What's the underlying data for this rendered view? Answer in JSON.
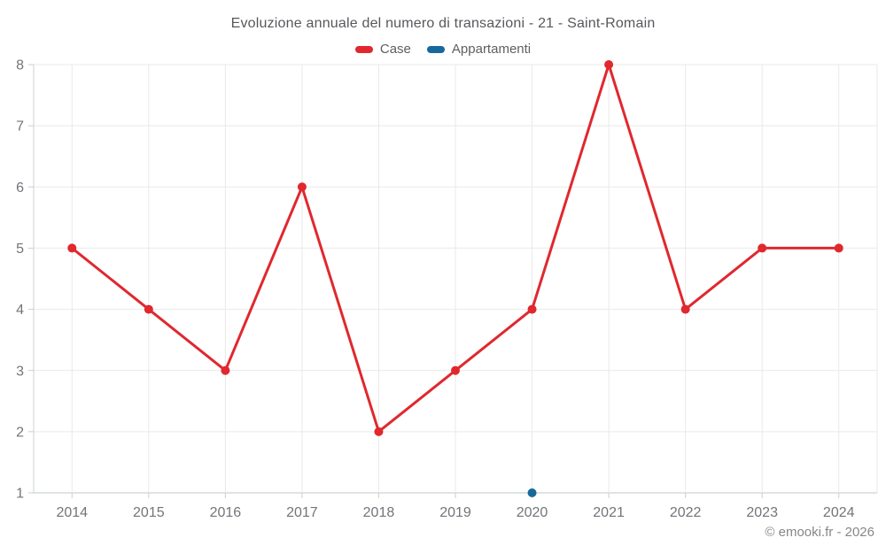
{
  "title": "Evoluzione annuale del numero di transazioni - 21 - Saint-Romain",
  "legend": [
    {
      "label": "Case",
      "color": "#e0282e"
    },
    {
      "label": "Appartamenti",
      "color": "#17699c"
    }
  ],
  "footer": {
    "credit": "© emooki.fr - 2026"
  },
  "colors": {
    "grid": "#e9e9e9",
    "axis_line": "#cdd2d5",
    "tick": "#c9ced1",
    "axis_label": "#71757a",
    "title_text": "#56585c",
    "background": "#ffffff"
  },
  "chart_data": {
    "type": "line",
    "title": "Evoluzione annuale del numero di transazioni - 21 - Saint-Romain",
    "categories": [
      "2014",
      "2015",
      "2016",
      "2017",
      "2018",
      "2019",
      "2020",
      "2021",
      "2022",
      "2023",
      "2024"
    ],
    "series": [
      {
        "name": "Case",
        "color": "#e0282e",
        "values": [
          5,
          4,
          3,
          6,
          2,
          3,
          4,
          8,
          4,
          5,
          5
        ]
      },
      {
        "name": "Appartamenti",
        "color": "#17699c",
        "values": [
          null,
          null,
          null,
          null,
          null,
          null,
          1,
          null,
          null,
          null,
          null
        ]
      }
    ],
    "xlabel": "",
    "ylabel": "",
    "ylim": [
      1,
      8
    ],
    "yticks": [
      1,
      2,
      3,
      4,
      5,
      6,
      7,
      8
    ],
    "grid": true,
    "legend_position": "top"
  }
}
